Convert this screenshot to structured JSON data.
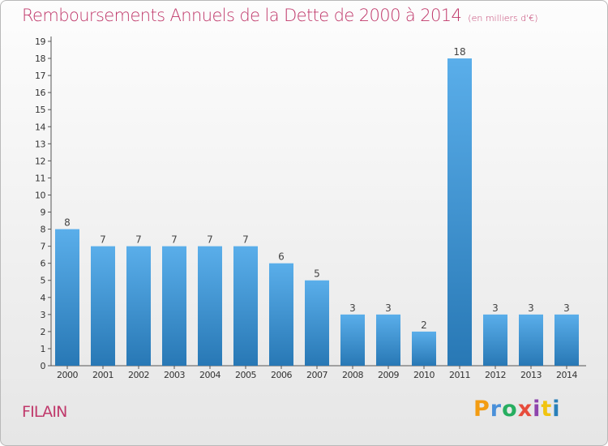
{
  "title": "Remboursements Annuels de la Dette de 2000 à 2014",
  "unit": "(en milliers d'€)",
  "commune": "FILAIN",
  "logo_letters": [
    "P",
    "r",
    "o",
    "x",
    "i",
    "t",
    "i"
  ],
  "colors": {
    "title": "#c0396b",
    "bar_top": "#5aaeea",
    "bar_bottom": "#2878b5"
  },
  "chart_data": {
    "type": "bar",
    "title": "Remboursements Annuels de la Dette de 2000 à 2014",
    "ylabel": "",
    "xlabel": "",
    "categories": [
      "2000",
      "2001",
      "2002",
      "2003",
      "2004",
      "2005",
      "2006",
      "2007",
      "2008",
      "2009",
      "2010",
      "2011",
      "2012",
      "2013",
      "2014"
    ],
    "values": [
      8,
      7,
      7,
      7,
      7,
      7,
      6,
      5,
      3,
      3,
      2,
      18,
      3,
      3,
      3
    ],
    "ylim": [
      0,
      19
    ],
    "yticks": [
      0,
      1,
      2,
      3,
      4,
      5,
      6,
      7,
      8,
      9,
      10,
      11,
      12,
      13,
      14,
      15,
      16,
      17,
      18,
      19
    ],
    "grid": false
  }
}
